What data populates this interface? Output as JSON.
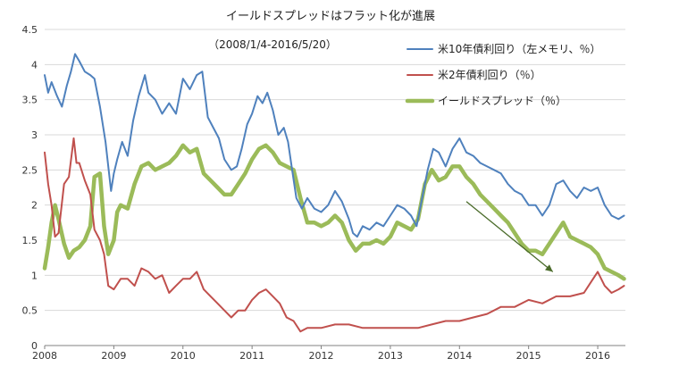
{
  "chart_data": {
    "type": "line",
    "title": "イールドスプレッドはフラット化が進展",
    "subtitle": "（2008/1/4-2016/5/20）",
    "xlabel": "",
    "ylabel": "",
    "ylim": [
      0,
      4.5
    ],
    "xlim": [
      2008.0,
      2016.4
    ],
    "y_ticks": [
      "0",
      "0.5",
      "1",
      "1.5",
      "2",
      "2.5",
      "3",
      "3.5",
      "4",
      "4.5"
    ],
    "x_ticks": [
      "2008",
      "2009",
      "2010",
      "2011",
      "2012",
      "2013",
      "2014",
      "2015",
      "2016"
    ],
    "grid": true,
    "legend_position": "top-right",
    "series": [
      {
        "name": "米10年債利回り（左メモリ、％）",
        "color": "#4f81bd",
        "x": [
          2008.0,
          2008.05,
          2008.1,
          2008.18,
          2008.25,
          2008.32,
          2008.38,
          2008.44,
          2008.5,
          2008.58,
          2008.66,
          2008.72,
          2008.8,
          2008.88,
          2008.96,
          2009.0,
          2009.05,
          2009.12,
          2009.2,
          2009.28,
          2009.36,
          2009.45,
          2009.5,
          2009.6,
          2009.7,
          2009.8,
          2009.9,
          2010.0,
          2010.1,
          2010.2,
          2010.28,
          2010.36,
          2010.44,
          2010.52,
          2010.6,
          2010.7,
          2010.78,
          2010.85,
          2010.93,
          2011.0,
          2011.08,
          2011.15,
          2011.22,
          2011.3,
          2011.38,
          2011.46,
          2011.52,
          2011.58,
          2011.64,
          2011.72,
          2011.8,
          2011.9,
          2012.0,
          2012.1,
          2012.2,
          2012.3,
          2012.4,
          2012.46,
          2012.52,
          2012.6,
          2012.7,
          2012.8,
          2012.9,
          2013.0,
          2013.1,
          2013.2,
          2013.3,
          2013.38,
          2013.46,
          2013.54,
          2013.62,
          2013.7,
          2013.8,
          2013.9,
          2014.0,
          2014.1,
          2014.2,
          2014.3,
          2014.4,
          2014.5,
          2014.6,
          2014.7,
          2014.8,
          2014.9,
          2015.0,
          2015.1,
          2015.2,
          2015.3,
          2015.4,
          2015.5,
          2015.6,
          2015.7,
          2015.8,
          2015.9,
          2016.0,
          2016.1,
          2016.2,
          2016.3,
          2016.38
        ],
        "values": [
          3.85,
          3.6,
          3.75,
          3.55,
          3.4,
          3.7,
          3.9,
          4.15,
          4.05,
          3.9,
          3.85,
          3.8,
          3.4,
          2.9,
          2.2,
          2.45,
          2.65,
          2.9,
          2.7,
          3.2,
          3.55,
          3.85,
          3.6,
          3.5,
          3.3,
          3.45,
          3.3,
          3.8,
          3.65,
          3.85,
          3.9,
          3.25,
          3.1,
          2.95,
          2.65,
          2.5,
          2.55,
          2.8,
          3.15,
          3.3,
          3.55,
          3.45,
          3.6,
          3.35,
          3.0,
          3.1,
          2.9,
          2.5,
          2.1,
          1.95,
          2.1,
          1.95,
          1.9,
          2.0,
          2.2,
          2.05,
          1.8,
          1.6,
          1.55,
          1.7,
          1.65,
          1.75,
          1.7,
          1.85,
          2.0,
          1.95,
          1.85,
          1.7,
          2.1,
          2.5,
          2.8,
          2.75,
          2.55,
          2.8,
          2.95,
          2.75,
          2.7,
          2.6,
          2.55,
          2.5,
          2.45,
          2.3,
          2.2,
          2.15,
          2.0,
          2.0,
          1.85,
          2.0,
          2.3,
          2.35,
          2.2,
          2.1,
          2.25,
          2.2,
          2.25,
          2.0,
          1.85,
          1.8,
          1.85
        ]
      },
      {
        "name": "米2年債利回り（％）",
        "color": "#c0504d",
        "x": [
          2008.0,
          2008.05,
          2008.1,
          2008.15,
          2008.2,
          2008.28,
          2008.35,
          2008.42,
          2008.46,
          2008.5,
          2008.58,
          2008.66,
          2008.72,
          2008.8,
          2008.86,
          2008.92,
          2009.0,
          2009.1,
          2009.2,
          2009.3,
          2009.4,
          2009.5,
          2009.6,
          2009.7,
          2009.8,
          2009.9,
          2010.0,
          2010.1,
          2010.2,
          2010.3,
          2010.4,
          2010.5,
          2010.6,
          2010.7,
          2010.8,
          2010.9,
          2011.0,
          2011.1,
          2011.2,
          2011.3,
          2011.4,
          2011.5,
          2011.6,
          2011.7,
          2011.8,
          2011.9,
          2012.0,
          2012.2,
          2012.4,
          2012.6,
          2012.8,
          2013.0,
          2013.2,
          2013.4,
          2013.6,
          2013.8,
          2014.0,
          2014.2,
          2014.4,
          2014.6,
          2014.8,
          2015.0,
          2015.2,
          2015.4,
          2015.6,
          2015.8,
          2015.9,
          2016.0,
          2016.1,
          2016.2,
          2016.3,
          2016.38
        ],
        "values": [
          2.75,
          2.3,
          2.0,
          1.55,
          1.6,
          2.3,
          2.4,
          2.95,
          2.6,
          2.6,
          2.35,
          2.15,
          1.65,
          1.5,
          1.3,
          0.85,
          0.8,
          0.95,
          0.95,
          0.85,
          1.1,
          1.05,
          0.95,
          1.0,
          0.75,
          0.85,
          0.95,
          0.95,
          1.05,
          0.8,
          0.7,
          0.6,
          0.5,
          0.4,
          0.5,
          0.5,
          0.65,
          0.75,
          0.8,
          0.7,
          0.6,
          0.4,
          0.35,
          0.2,
          0.25,
          0.25,
          0.25,
          0.3,
          0.3,
          0.25,
          0.25,
          0.25,
          0.25,
          0.25,
          0.3,
          0.35,
          0.35,
          0.4,
          0.45,
          0.55,
          0.55,
          0.65,
          0.6,
          0.7,
          0.7,
          0.75,
          0.9,
          1.05,
          0.85,
          0.75,
          0.8,
          0.85
        ]
      },
      {
        "name": "イールドスプレッド（％）",
        "color": "#9bbb59",
        "x": [
          2008.0,
          2008.05,
          2008.1,
          2008.15,
          2008.2,
          2008.28,
          2008.35,
          2008.42,
          2008.5,
          2008.58,
          2008.66,
          2008.72,
          2008.8,
          2008.86,
          2008.92,
          2009.0,
          2009.05,
          2009.1,
          2009.2,
          2009.3,
          2009.4,
          2009.5,
          2009.6,
          2009.7,
          2009.8,
          2009.9,
          2010.0,
          2010.1,
          2010.2,
          2010.3,
          2010.4,
          2010.5,
          2010.6,
          2010.7,
          2010.8,
          2010.9,
          2011.0,
          2011.1,
          2011.2,
          2011.3,
          2011.4,
          2011.5,
          2011.6,
          2011.7,
          2011.8,
          2011.9,
          2012.0,
          2012.1,
          2012.2,
          2012.3,
          2012.4,
          2012.5,
          2012.6,
          2012.7,
          2012.8,
          2012.9,
          2013.0,
          2013.1,
          2013.2,
          2013.3,
          2013.4,
          2013.5,
          2013.6,
          2013.7,
          2013.8,
          2013.9,
          2014.0,
          2014.1,
          2014.2,
          2014.3,
          2014.4,
          2014.5,
          2014.6,
          2014.7,
          2014.8,
          2014.9,
          2015.0,
          2015.1,
          2015.2,
          2015.3,
          2015.4,
          2015.5,
          2015.6,
          2015.7,
          2015.8,
          2015.9,
          2016.0,
          2016.1,
          2016.2,
          2016.3,
          2016.38
        ],
        "values": [
          1.1,
          1.4,
          1.75,
          2.0,
          1.8,
          1.45,
          1.25,
          1.35,
          1.4,
          1.5,
          1.7,
          2.4,
          2.45,
          1.7,
          1.3,
          1.5,
          1.9,
          2.0,
          1.95,
          2.3,
          2.55,
          2.6,
          2.5,
          2.55,
          2.6,
          2.7,
          2.85,
          2.75,
          2.8,
          2.45,
          2.35,
          2.25,
          2.15,
          2.15,
          2.3,
          2.45,
          2.65,
          2.8,
          2.85,
          2.75,
          2.6,
          2.55,
          2.5,
          2.1,
          1.75,
          1.75,
          1.7,
          1.75,
          1.85,
          1.75,
          1.5,
          1.35,
          1.45,
          1.45,
          1.5,
          1.45,
          1.55,
          1.75,
          1.7,
          1.65,
          1.8,
          2.3,
          2.5,
          2.35,
          2.4,
          2.55,
          2.55,
          2.4,
          2.3,
          2.15,
          2.05,
          1.95,
          1.85,
          1.75,
          1.6,
          1.45,
          1.35,
          1.35,
          1.3,
          1.45,
          1.6,
          1.75,
          1.55,
          1.5,
          1.45,
          1.4,
          1.3,
          1.1,
          1.05,
          1.0,
          0.95
        ]
      }
    ],
    "annotations": [
      {
        "type": "arrow",
        "color": "#4a6b2a",
        "from": {
          "x": 2014.1,
          "y": 2.05
        },
        "to": {
          "x": 2015.35,
          "y": 1.05
        }
      }
    ]
  }
}
